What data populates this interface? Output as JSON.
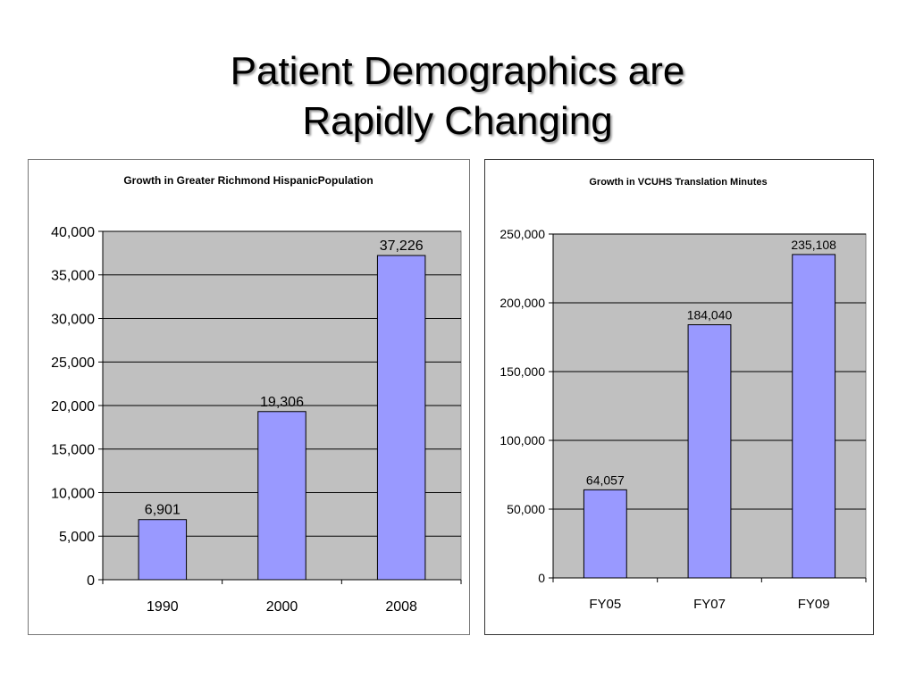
{
  "slide": {
    "title_line1": "Patient Demographics are",
    "title_line2": "Rapidly Changing"
  },
  "colors": {
    "bar_fill": "#9999ff",
    "bar_stroke": "#000000",
    "plot_background": "#c0c0c0",
    "gridline": "#000000"
  },
  "chart_data": [
    {
      "type": "bar",
      "title": "Growth in Greater Richmond HispanicPopulation",
      "categories": [
        "1990",
        "2000",
        "2008"
      ],
      "values": [
        6901,
        19306,
        37226
      ],
      "value_labels": [
        "6,901",
        "19,306",
        "37,226"
      ],
      "yticks": [
        0,
        5000,
        10000,
        15000,
        20000,
        25000,
        30000,
        35000,
        40000
      ],
      "ytick_labels": [
        "0",
        "5,000",
        "10,000",
        "15,000",
        "20,000",
        "25,000",
        "30,000",
        "35,000",
        "40,000"
      ],
      "ylim": [
        0,
        40000
      ],
      "xlabel": "",
      "ylabel": "",
      "grid": true,
      "legend": false
    },
    {
      "type": "bar",
      "title": "Growth in VCUHS Translation Minutes",
      "categories": [
        "FY05",
        "FY07",
        "FY09"
      ],
      "values": [
        64057,
        184040,
        235108
      ],
      "value_labels": [
        "64,057",
        "184,040",
        "235,108"
      ],
      "yticks": [
        0,
        50000,
        100000,
        150000,
        200000,
        250000
      ],
      "ytick_labels": [
        "0",
        "50,000",
        "100,000",
        "150,000",
        "200,000",
        "250,000"
      ],
      "ylim": [
        0,
        250000
      ],
      "xlabel": "",
      "ylabel": "",
      "grid": true,
      "legend": false
    }
  ]
}
